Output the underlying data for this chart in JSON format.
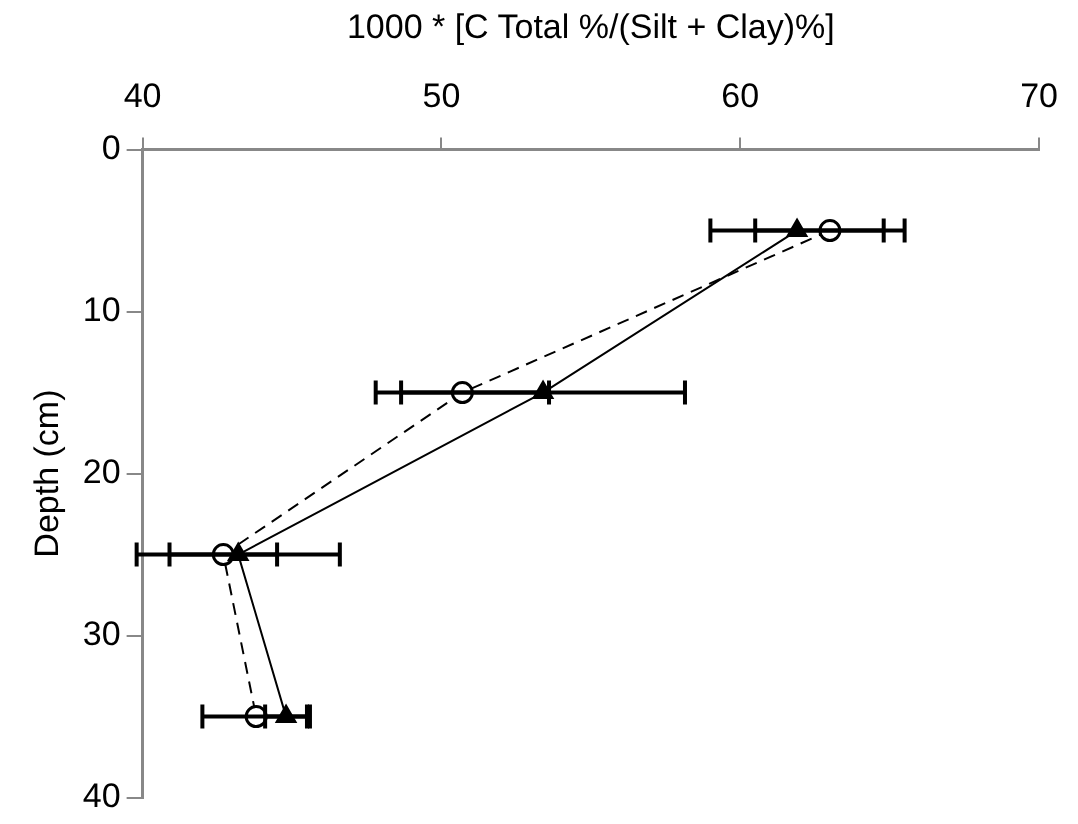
{
  "chart_data": {
    "type": "line",
    "xlabel": "1000 * [C Total %/(Silt + Clay)%]",
    "ylabel": "Depth (cm)",
    "xlim": [
      40,
      70
    ],
    "xticks": [
      40,
      50,
      60,
      70
    ],
    "ylim": [
      40,
      0
    ],
    "yticks": [
      0,
      10,
      20,
      30,
      40
    ],
    "grid": false,
    "legend": false,
    "series": [
      {
        "color": "#000000",
        "marker": "triangle",
        "line_style": "solid",
        "x": [
          61.9,
          53.4,
          43.2,
          44.8
        ],
        "values": [
          5,
          15,
          25,
          35
        ],
        "xerrors": [
          2.9,
          4.75,
          3.4,
          0.7
        ]
      },
      {
        "color": "#000000",
        "marker": "circle",
        "line_style": "dashed",
        "x": [
          63.0,
          50.7,
          42.7,
          43.8
        ],
        "values": [
          5,
          15,
          25,
          35
        ],
        "xerrors": [
          2.5,
          2.9,
          1.8,
          1.8
        ]
      }
    ]
  }
}
